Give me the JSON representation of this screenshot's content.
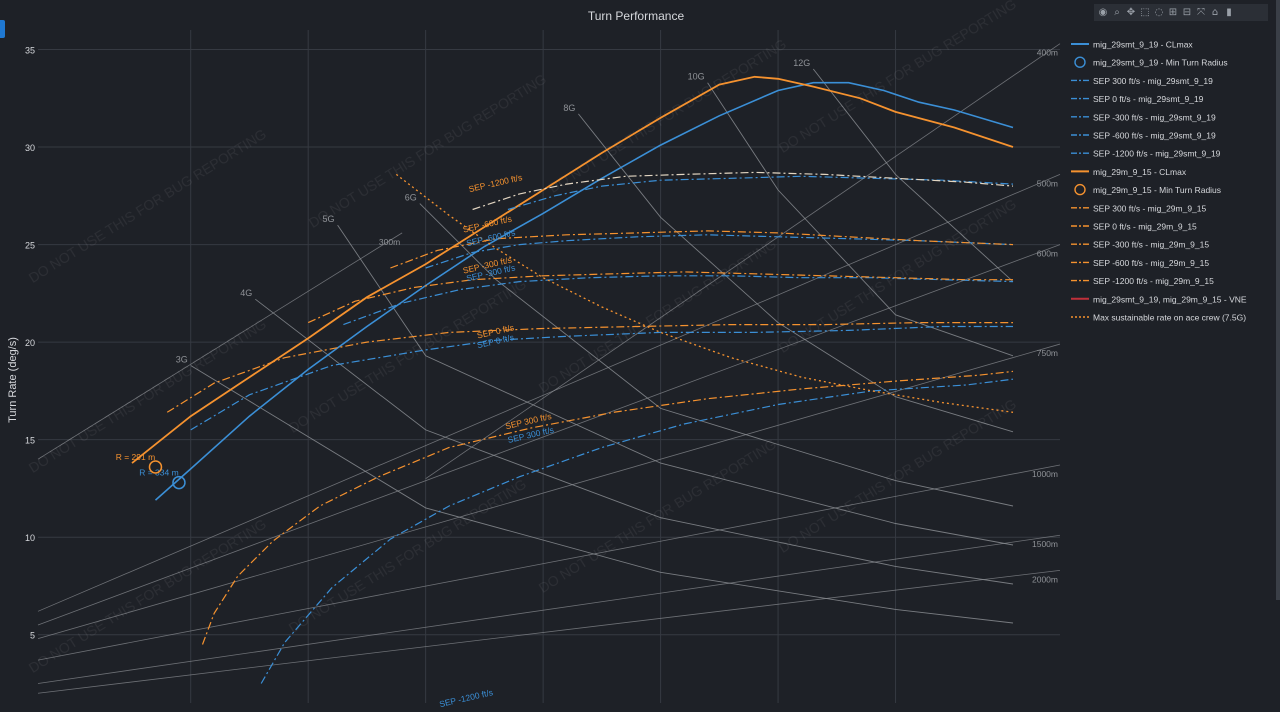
{
  "title": "Turn Performance",
  "ylabel": "Turn Rate (deg/s)",
  "watermark": "DO NOT USE THIS FOR BUG REPORTING",
  "colors": {
    "blue": "#3b8fd6",
    "orange": "#f5922f",
    "cream": "#e3d6c2",
    "grid": "#363a42",
    "iso": "#8f9297",
    "text": "#d6d8dc",
    "vne": "#c0303a"
  },
  "toolbar": [
    {
      "name": "camera-icon",
      "glyph": "◉"
    },
    {
      "name": "zoom-icon",
      "glyph": "⌕"
    },
    {
      "name": "pan-icon",
      "glyph": "✥"
    },
    {
      "name": "box-select-icon",
      "glyph": "⬚"
    },
    {
      "name": "lasso-icon",
      "glyph": "◌"
    },
    {
      "name": "zoom-in-icon",
      "glyph": "⊞"
    },
    {
      "name": "zoom-out-icon",
      "glyph": "⊟"
    },
    {
      "name": "autoscale-icon",
      "glyph": "⤧"
    },
    {
      "name": "reset-axes-icon",
      "glyph": "⌂"
    },
    {
      "name": "plotly-logo-icon",
      "glyph": "▮"
    }
  ],
  "legend": [
    {
      "label": "mig_29smt_9_19 - CLmax",
      "color": "#3b8fd6",
      "style": "solid"
    },
    {
      "label": "mig_29smt_9_19 - Min Turn Radius",
      "color": "#3b8fd6",
      "style": "circle"
    },
    {
      "label": "SEP 300 ft/s - mig_29smt_9_19",
      "color": "#3b8fd6",
      "style": "dashdot"
    },
    {
      "label": "SEP 0 ft/s - mig_29smt_9_19",
      "color": "#3b8fd6",
      "style": "dashdot"
    },
    {
      "label": "SEP -300 ft/s - mig_29smt_9_19",
      "color": "#3b8fd6",
      "style": "dashdot"
    },
    {
      "label": "SEP -600 ft/s - mig_29smt_9_19",
      "color": "#3b8fd6",
      "style": "dashdot"
    },
    {
      "label": "SEP -1200 ft/s - mig_29smt_9_19",
      "color": "#3b8fd6",
      "style": "dashdot"
    },
    {
      "label": "mig_29m_9_15 - CLmax",
      "color": "#f5922f",
      "style": "solid"
    },
    {
      "label": "mig_29m_9_15 - Min Turn Radius",
      "color": "#f5922f",
      "style": "circle"
    },
    {
      "label": "SEP 300 ft/s - mig_29m_9_15",
      "color": "#f5922f",
      "style": "dashdot"
    },
    {
      "label": "SEP 0 ft/s - mig_29m_9_15",
      "color": "#f5922f",
      "style": "dashdot"
    },
    {
      "label": "SEP -300 ft/s - mig_29m_9_15",
      "color": "#f5922f",
      "style": "dashdot"
    },
    {
      "label": "SEP -600 ft/s - mig_29m_9_15",
      "color": "#f5922f",
      "style": "dashdot"
    },
    {
      "label": "SEP -1200 ft/s - mig_29m_9_15",
      "color": "#f5922f",
      "style": "dashdot"
    },
    {
      "label": "mig_29smt_9_19, mig_29m_9_15 - VNE",
      "color": "#c0303a",
      "style": "solid"
    },
    {
      "label": "Max sustainable rate on ace crew (7.5G)",
      "color": "#f5922f",
      "style": "dot"
    }
  ],
  "chart_data": {
    "type": "line",
    "title": "Turn Performance",
    "xlabel": "",
    "ylabel": "Turn Rate (deg/s)",
    "xlim": [
      170,
      1040
    ],
    "ylim": [
      1.5,
      36
    ],
    "yticks": [
      5,
      10,
      15,
      20,
      25,
      30,
      35
    ],
    "xticks": [
      300,
      400,
      500,
      600,
      700,
      800,
      900
    ],
    "grid": true,
    "legend_position": "right",
    "series": [
      {
        "name": "mig_29smt_9_19 - CLmax",
        "color": "#3b8fd6",
        "dash": "solid",
        "width": 1.6,
        "x": [
          270,
          300,
          350,
          400,
          450,
          500,
          550,
          600,
          650,
          700,
          750,
          800,
          830,
          860,
          890,
          920,
          950,
          1000
        ],
        "y": [
          11.9,
          13.5,
          16.2,
          18.6,
          20.8,
          22.9,
          24.9,
          26.6,
          28.4,
          30.1,
          31.6,
          32.9,
          33.3,
          33.3,
          32.9,
          32.3,
          31.9,
          31.0
        ]
      },
      {
        "name": "mig_29m_9_15 - CLmax",
        "color": "#f5922f",
        "dash": "solid",
        "width": 1.8,
        "x": [
          250,
          300,
          350,
          400,
          450,
          500,
          550,
          600,
          650,
          700,
          750,
          780,
          800,
          830,
          870,
          900,
          950,
          1000
        ],
        "y": [
          13.8,
          16.2,
          18.2,
          20.2,
          22.3,
          24.0,
          25.9,
          27.8,
          29.7,
          31.5,
          33.2,
          33.6,
          33.5,
          33.1,
          32.5,
          31.8,
          31.0,
          30.0
        ]
      },
      {
        "name": "SEP 300 ft/s - mig_29smt_9_19",
        "color": "#3b8fd6",
        "dash": "dashdot",
        "width": 1.2,
        "x": [
          360,
          380,
          420,
          470,
          520,
          580,
          650,
          720,
          800,
          880,
          960,
          1000
        ],
        "y": [
          2.5,
          4.6,
          7.4,
          9.9,
          11.6,
          13.1,
          14.6,
          15.8,
          16.8,
          17.5,
          17.8,
          18.1
        ]
      },
      {
        "name": "SEP 0 ft/s - mig_29smt_9_19",
        "color": "#3b8fd6",
        "dash": "dashdot",
        "width": 1.2,
        "x": [
          300,
          350,
          420,
          500,
          560,
          620,
          700,
          780,
          860,
          940,
          1000
        ],
        "y": [
          15.5,
          17.3,
          18.8,
          19.6,
          20.1,
          20.3,
          20.5,
          20.5,
          20.6,
          20.8,
          20.8
        ]
      },
      {
        "name": "SEP -300 ft/s - mig_29smt_9_19",
        "color": "#3b8fd6",
        "dash": "dashdot",
        "width": 1.2,
        "x": [
          430,
          480,
          530,
          580,
          640,
          700,
          760,
          820,
          880,
          940,
          1000
        ],
        "y": [
          20.9,
          22.0,
          22.7,
          23.1,
          23.3,
          23.4,
          23.4,
          23.3,
          23.3,
          23.2,
          23.1
        ]
      },
      {
        "name": "SEP -600 ft/s - mig_29smt_9_19",
        "color": "#3b8fd6",
        "dash": "dashdot",
        "width": 1.2,
        "x": [
          500,
          540,
          580,
          620,
          680,
          740,
          800,
          860,
          920,
          1000
        ],
        "y": [
          23.8,
          24.6,
          25.0,
          25.2,
          25.4,
          25.5,
          25.4,
          25.3,
          25.2,
          25.0
        ]
      },
      {
        "name": "SEP -1200 ft/s - mig_29smt_9_19",
        "color": "#3b8fd6",
        "dash": "dashdot",
        "width": 1.2,
        "x": [
          570,
          610,
          650,
          700,
          760,
          820,
          880,
          940,
          1000
        ],
        "y": [
          26.8,
          27.5,
          28.0,
          28.3,
          28.4,
          28.5,
          28.4,
          28.3,
          28.1
        ]
      },
      {
        "name": "SEP 300 ft/s - mig_29m_9_15",
        "color": "#f5922f",
        "dash": "dashdot",
        "width": 1.2,
        "x": [
          310,
          320,
          340,
          370,
          410,
          460,
          520,
          590,
          660,
          740,
          820,
          900,
          970,
          1000
        ],
        "y": [
          4.5,
          6.1,
          8.0,
          9.8,
          11.6,
          13.1,
          14.6,
          15.6,
          16.4,
          17.1,
          17.6,
          18.0,
          18.3,
          18.5
        ]
      },
      {
        "name": "SEP 0 ft/s - mig_29m_9_15",
        "color": "#f5922f",
        "dash": "dashdot",
        "width": 1.2,
        "x": [
          280,
          320,
          380,
          450,
          520,
          600,
          680,
          760,
          840,
          920,
          1000
        ],
        "y": [
          16.4,
          17.9,
          19.2,
          20.0,
          20.5,
          20.7,
          20.8,
          20.9,
          20.9,
          21.0,
          21.0
        ]
      },
      {
        "name": "SEP -300 ft/s - mig_29m_9_15",
        "color": "#f5922f",
        "dash": "dashdot",
        "width": 1.2,
        "x": [
          400,
          440,
          490,
          540,
          600,
          660,
          720,
          780,
          840,
          900,
          960,
          1000
        ],
        "y": [
          21.0,
          22.1,
          22.8,
          23.2,
          23.4,
          23.5,
          23.6,
          23.5,
          23.4,
          23.3,
          23.2,
          23.2
        ]
      },
      {
        "name": "SEP -600 ft/s - mig_29m_9_15",
        "color": "#f5922f",
        "dash": "dashdot",
        "width": 1.2,
        "x": [
          470,
          510,
          560,
          620,
          680,
          740,
          800,
          860,
          920,
          1000
        ],
        "y": [
          23.8,
          24.7,
          25.3,
          25.5,
          25.6,
          25.7,
          25.6,
          25.4,
          25.2,
          25.0
        ]
      },
      {
        "name": "SEP -1200 ft/s - mig_29m_9_15",
        "color": "#e3d6c2",
        "dash": "dashdot",
        "width": 1.2,
        "x": [
          540,
          580,
          620,
          670,
          720,
          780,
          840,
          900,
          960,
          1000
        ],
        "y": [
          26.8,
          27.6,
          28.1,
          28.5,
          28.6,
          28.7,
          28.6,
          28.4,
          28.2,
          28.0
        ]
      },
      {
        "name": "Max sustainable rate on ace crew (7.5G)",
        "color": "#f5922f",
        "dash": "dot",
        "width": 1.3,
        "x": [
          475,
          520,
          560,
          600,
          650,
          700,
          760,
          820,
          880,
          940,
          1000
        ],
        "y": [
          28.6,
          26.5,
          24.8,
          23.3,
          21.8,
          20.5,
          19.2,
          18.2,
          17.5,
          16.9,
          16.4
        ]
      }
    ],
    "markers": [
      {
        "name": "mig_29smt_9_19 - Min Turn Radius",
        "x": 290,
        "y": 12.8,
        "color": "#3b8fd6",
        "label": "R = 334 m"
      },
      {
        "name": "mig_29m_9_15 - Min Turn Radius",
        "x": 270,
        "y": 13.6,
        "color": "#f5922f",
        "label": "R = 291 m"
      }
    ],
    "g_curves": [
      {
        "label": "3G",
        "x": [
          300,
          500,
          700,
          900,
          1000
        ],
        "y": [
          18.8,
          11.5,
          8.2,
          6.3,
          5.6
        ]
      },
      {
        "label": "4G",
        "x": [
          355,
          500,
          700,
          900,
          1000
        ],
        "y": [
          22.2,
          15.5,
          11.0,
          8.5,
          7.6
        ]
      },
      {
        "label": "5G",
        "x": [
          425,
          500,
          700,
          900,
          1000
        ],
        "y": [
          26.0,
          19.3,
          13.8,
          10.7,
          9.6
        ]
      },
      {
        "label": "6G",
        "x": [
          495,
          560,
          700,
          900,
          1000
        ],
        "y": [
          27.1,
          23.2,
          16.6,
          12.9,
          11.6
        ]
      },
      {
        "label": "8G",
        "x": [
          630,
          700,
          800,
          900,
          1000
        ],
        "y": [
          31.7,
          26.4,
          21.0,
          17.2,
          15.4
        ]
      },
      {
        "label": "10G",
        "x": [
          740,
          800,
          900,
          1000
        ],
        "y": [
          33.3,
          27.8,
          21.4,
          19.3
        ]
      },
      {
        "label": "12G",
        "x": [
          830,
          900,
          1000
        ],
        "y": [
          34.0,
          28.6,
          23.1
        ]
      }
    ],
    "radius_lines": [
      {
        "label": "300m",
        "x": [
          170,
          480
        ],
        "y": [
          14.0,
          25.6
        ]
      },
      {
        "label": "400m",
        "x": [
          500,
          1040
        ],
        "y": [
          13.0,
          35.3
        ]
      },
      {
        "label": "500m",
        "x": [
          170,
          1040
        ],
        "y": [
          6.2,
          28.6
        ]
      },
      {
        "label": "600m",
        "x": [
          170,
          1040
        ],
        "y": [
          5.5,
          25.0
        ]
      },
      {
        "label": "750m",
        "x": [
          170,
          1040
        ],
        "y": [
          4.8,
          19.9
        ]
      },
      {
        "label": "1000m",
        "x": [
          170,
          1040
        ],
        "y": [
          3.7,
          13.7
        ]
      },
      {
        "label": "1500m",
        "x": [
          170,
          1040
        ],
        "y": [
          2.5,
          10.1
        ]
      },
      {
        "label": "2000m",
        "x": [
          170,
          1040
        ],
        "y": [
          2.0,
          8.3
        ]
      }
    ],
    "annotations": [
      {
        "text": "SEP 300 ft/s",
        "x": 588,
        "y": 15.8,
        "color": "#f5922f"
      },
      {
        "text": "SEP 300 ft/s",
        "x": 590,
        "y": 15.1,
        "color": "#3b8fd6"
      },
      {
        "text": "SEP 0 ft/s",
        "x": 560,
        "y": 20.4,
        "color": "#f5922f"
      },
      {
        "text": "SEP 0 ft/s",
        "x": 560,
        "y": 19.9,
        "color": "#3b8fd6"
      },
      {
        "text": "SEP -300 ft/s",
        "x": 553,
        "y": 23.8,
        "color": "#f5922f"
      },
      {
        "text": "SEP -300 ft/s",
        "x": 556,
        "y": 23.4,
        "color": "#3b8fd6"
      },
      {
        "text": "SEP -600 ft/s",
        "x": 553,
        "y": 25.9,
        "color": "#f5922f"
      },
      {
        "text": "SEP -600 ft/s",
        "x": 556,
        "y": 25.2,
        "color": "#3b8fd6"
      },
      {
        "text": "SEP -1200 ft/s",
        "x": 560,
        "y": 28.0,
        "color": "#f5922f"
      },
      {
        "text": "SEP -1200 ft/s",
        "x": 535,
        "y": 1.6,
        "color": "#3b8fd6"
      }
    ]
  }
}
